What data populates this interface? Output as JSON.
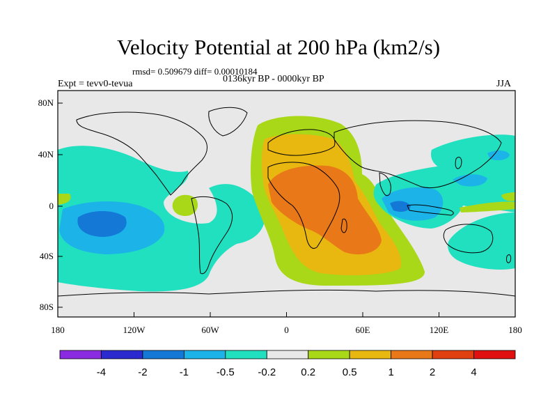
{
  "title": "Velocity Potential at 200 hPa (km2/s)",
  "stats": "rmsd= 0.509679 diff= 0.00010184",
  "period": "0136kyr BP - 0000kyr BP",
  "experiment": "Expt = tevv0-tevua",
  "season": "JJA",
  "map": {
    "projection": "cylindrical equidistant",
    "land_outline_color": "#000000",
    "ocean_neutral_color": "#e8e8e8",
    "lon_ticks": [
      "180",
      "120W",
      "60W",
      "0",
      "60E",
      "120E",
      "180"
    ],
    "lat_ticks": [
      "80N",
      "40N",
      "0",
      "40S",
      "80S"
    ]
  },
  "colorbar": {
    "labels": [
      "-4",
      "-2",
      "-1",
      "-0.5",
      "-0.2",
      "0.2",
      "0.5",
      "1",
      "2",
      "4"
    ],
    "colors": [
      "#8a2be2",
      "#2a2acf",
      "#1478d6",
      "#1cb4e8",
      "#20e0c0",
      "#e8e8e8",
      "#a8d818",
      "#e8b810",
      "#e87818",
      "#e04010",
      "#e01010"
    ]
  }
}
